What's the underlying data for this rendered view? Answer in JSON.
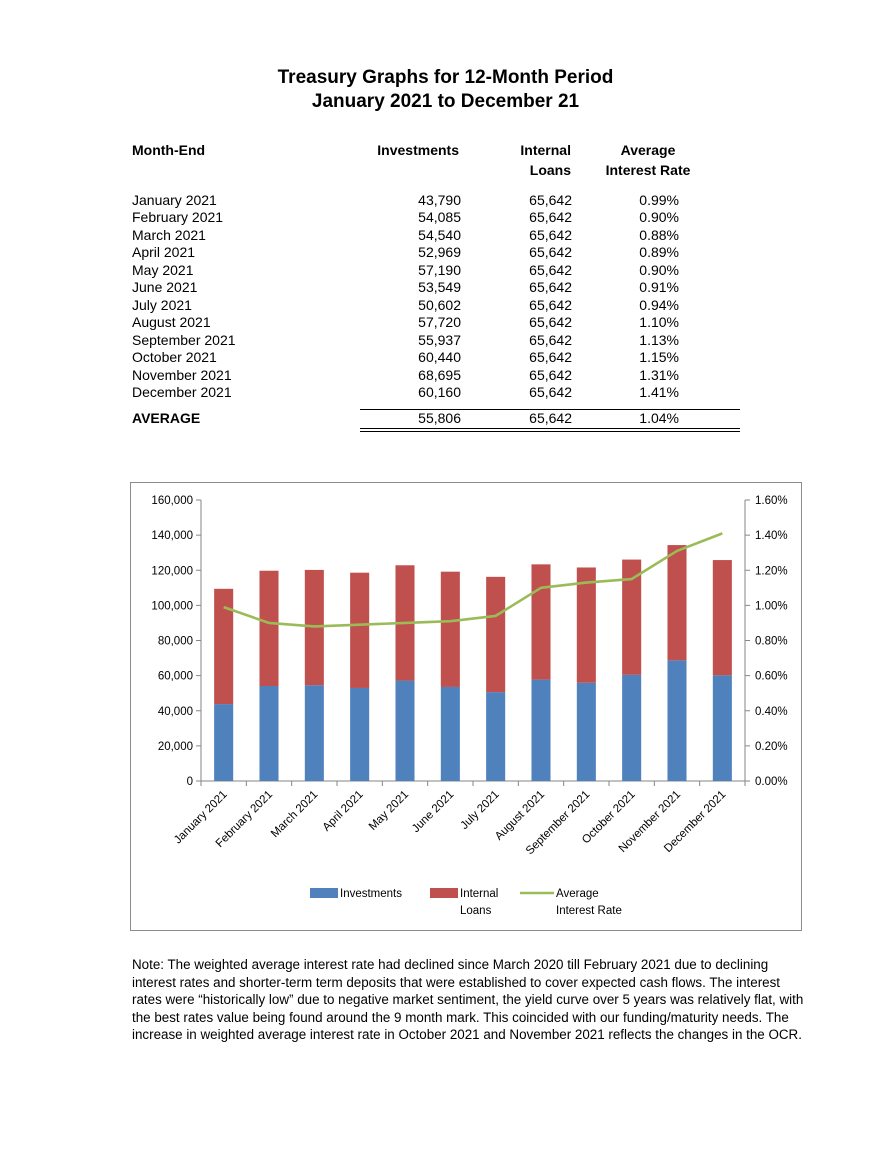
{
  "title": {
    "line1": "Treasury Graphs for 12-Month Period",
    "line2": "January 2021 to December 21"
  },
  "table": {
    "headers": {
      "month": "Month-End",
      "investments": "Investments",
      "loans_line1": "Internal",
      "loans_line2": "Loans",
      "rate_line1": "Average",
      "rate_line2": "Interest Rate"
    },
    "rows": [
      {
        "month": "January 2021",
        "investments": "43,790",
        "loans": "65,642",
        "rate": "0.99%"
      },
      {
        "month": "February 2021",
        "investments": "54,085",
        "loans": "65,642",
        "rate": "0.90%"
      },
      {
        "month": "March 2021",
        "investments": "54,540",
        "loans": "65,642",
        "rate": "0.88%"
      },
      {
        "month": "April 2021",
        "investments": "52,969",
        "loans": "65,642",
        "rate": "0.89%"
      },
      {
        "month": "May 2021",
        "investments": "57,190",
        "loans": "65,642",
        "rate": "0.90%"
      },
      {
        "month": "June 2021",
        "investments": "53,549",
        "loans": "65,642",
        "rate": "0.91%"
      },
      {
        "month": "July 2021",
        "investments": "50,602",
        "loans": "65,642",
        "rate": "0.94%"
      },
      {
        "month": "August 2021",
        "investments": "57,720",
        "loans": "65,642",
        "rate": "1.10%"
      },
      {
        "month": "September 2021",
        "investments": "55,937",
        "loans": "65,642",
        "rate": "1.13%"
      },
      {
        "month": "October 2021",
        "investments": "60,440",
        "loans": "65,642",
        "rate": "1.15%"
      },
      {
        "month": "November 2021",
        "investments": "68,695",
        "loans": "65,642",
        "rate": "1.31%"
      },
      {
        "month": "December 2021",
        "investments": "60,160",
        "loans": "65,642",
        "rate": "1.41%"
      }
    ],
    "average": {
      "label": "AVERAGE",
      "investments": "55,806",
      "loans": "65,642",
      "rate": "1.04%"
    }
  },
  "chart_data": {
    "type": "bar",
    "stacked": true,
    "categories": [
      "January 2021",
      "February 2021",
      "March 2021",
      "April 2021",
      "May 2021",
      "June 2021",
      "July 2021",
      "August 2021",
      "September 2021",
      "October 2021",
      "November 2021",
      "December 2021"
    ],
    "series": [
      {
        "name": "Investments",
        "type": "bar",
        "axis": "left",
        "color": "#4f81bd",
        "values": [
          43790,
          54085,
          54540,
          52969,
          57190,
          53549,
          50602,
          57720,
          55937,
          60440,
          68695,
          60160
        ]
      },
      {
        "name": "Internal Loans",
        "type": "bar",
        "axis": "left",
        "color": "#c0504d",
        "values": [
          65642,
          65642,
          65642,
          65642,
          65642,
          65642,
          65642,
          65642,
          65642,
          65642,
          65642,
          65642
        ]
      },
      {
        "name": "Average Interest Rate",
        "type": "line",
        "axis": "right",
        "color": "#9bbb59",
        "values": [
          0.99,
          0.9,
          0.88,
          0.89,
          0.9,
          0.91,
          0.94,
          1.1,
          1.13,
          1.15,
          1.31,
          1.41
        ]
      }
    ],
    "left_axis": {
      "min": 0,
      "max": 160000,
      "ticks": [
        "0",
        "20,000",
        "40,000",
        "60,000",
        "80,000",
        "100,000",
        "120,000",
        "140,000",
        "160,000"
      ]
    },
    "right_axis": {
      "min": 0,
      "max": 1.6,
      "ticks": [
        "0.00%",
        "0.20%",
        "0.40%",
        "0.60%",
        "0.80%",
        "1.00%",
        "1.20%",
        "1.40%",
        "1.60%"
      ]
    },
    "legend": {
      "position": "bottom",
      "items": [
        {
          "line1": "Investments",
          "line2": ""
        },
        {
          "line1": "Internal",
          "line2": "Loans"
        },
        {
          "line1": "Average",
          "line2": "Interest Rate"
        }
      ]
    },
    "grid": false
  },
  "note": "Note:  The weighted average interest rate had declined since March 2020 till February 2021 due to declining interest rates and shorter-term term deposits that were established to cover expected cash flows. The interest rates were “historically low” due to negative market sentiment, the yield curve over 5 years was relatively flat, with the best rates value being found around the 9 month mark. This coincided with our funding/maturity needs. The increase in weighted average interest rate in October 2021 and November 2021 reflects the changes in the OCR."
}
